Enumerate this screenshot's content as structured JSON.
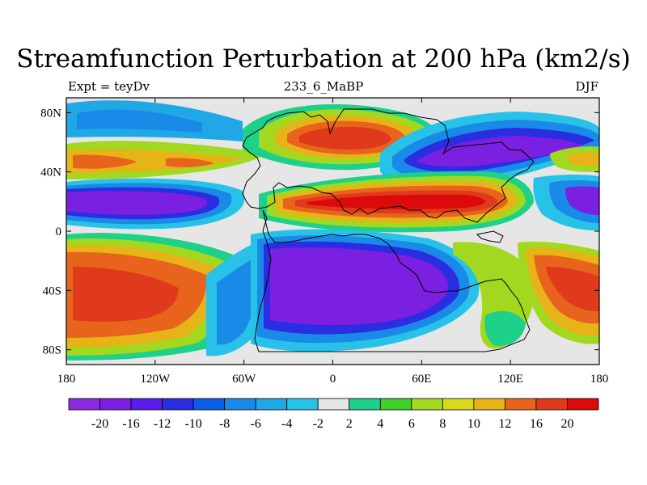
{
  "title": "Streamfunction Perturbation at 200 hPa (km2/s)",
  "left_string": "Expt = teyDv",
  "center_string": "233_6_MaBP",
  "right_string": "DJF",
  "x_ticks": [
    "180",
    "120W",
    "60W",
    "0",
    "60E",
    "120E",
    "180"
  ],
  "y_ticks": [
    "80N",
    "40N",
    "0",
    "40S",
    "80S"
  ],
  "colorbar": {
    "labels": [
      "-20",
      "-16",
      "-12",
      "-10",
      "-8",
      "-6",
      "-4",
      "-2",
      "2",
      "4",
      "6",
      "8",
      "10",
      "12",
      "16",
      "20"
    ],
    "colors": [
      "#8a2be2",
      "#7b1fe0",
      "#5a1ce6",
      "#2a2ee0",
      "#0a5ee8",
      "#1a8ae8",
      "#20a8e6",
      "#28c2e8",
      "#e6e6e6",
      "#1ed08a",
      "#40d02a",
      "#a2d820",
      "#d8d81c",
      "#e6b418",
      "#e8641c",
      "#e03a1c",
      "#dc0a0a"
    ]
  },
  "map_data": {
    "type": "filled-contour map",
    "variable": "Streamfunction Perturbation",
    "level_hPa": 200,
    "units": "km2/s",
    "lon_range": [
      -180,
      180
    ],
    "lat_range": [
      -90,
      90
    ],
    "features": [
      {
        "lon": -150,
        "lat": 22,
        "value": -20
      },
      {
        "lon": -140,
        "lat": -40,
        "value": 16
      },
      {
        "lon": 0,
        "lat": 60,
        "value": 20
      },
      {
        "lon": 70,
        "lat": 20,
        "value": 20
      },
      {
        "lon": 20,
        "lat": -30,
        "value": -20
      },
      {
        "lon": 80,
        "lat": 45,
        "value": -20
      },
      {
        "lon": 155,
        "lat": -35,
        "value": 16
      }
    ]
  }
}
